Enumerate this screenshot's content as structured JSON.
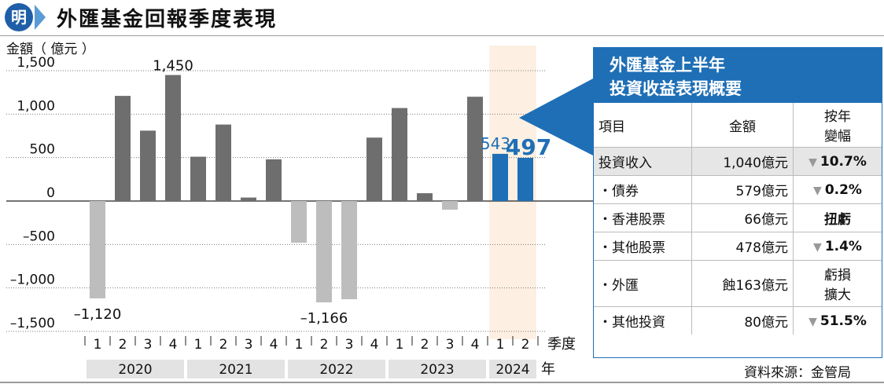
{
  "header": {
    "logo_text": "明",
    "title": "外匯基金回報季度表現"
  },
  "chart_data": {
    "type": "bar",
    "ylabel": "金額（ 億元 ）",
    "xlabel": "季度",
    "year_axis_label": "年",
    "ylim": [
      -1500,
      1500
    ],
    "yticks": [
      1500,
      1000,
      500,
      0,
      -500,
      -1000,
      -1500
    ],
    "ytick_labels": [
      "1,500",
      "1,000",
      "500",
      "0",
      "–500",
      "–1,000",
      "–1,500"
    ],
    "quarters": [
      "1",
      "2",
      "3",
      "4",
      "1",
      "2",
      "3",
      "4",
      "1",
      "2",
      "3",
      "4",
      "1",
      "2",
      "3",
      "4",
      "1",
      "2"
    ],
    "years": [
      "2020",
      "2020",
      "2020",
      "2020",
      "2021",
      "2021",
      "2021",
      "2021",
      "2022",
      "2022",
      "2022",
      "2022",
      "2023",
      "2023",
      "2023",
      "2023",
      "2024",
      "2024"
    ],
    "year_groups": [
      {
        "label": "2020",
        "count": 4
      },
      {
        "label": "2021",
        "count": 4
      },
      {
        "label": "2022",
        "count": 4
      },
      {
        "label": "2023",
        "count": 4
      },
      {
        "label": "2024",
        "count": 2
      }
    ],
    "values": [
      -1120,
      1210,
      810,
      1450,
      510,
      880,
      40,
      480,
      -480,
      -1166,
      -1130,
      730,
      1070,
      90,
      -100,
      1200,
      543,
      497
    ],
    "highlight_year": "2024",
    "colors": {
      "positive": "#6e6e6e",
      "negative": "#bdbdbd",
      "highlight": "#1f6fb6",
      "highlight_band": "#fdf0e2"
    },
    "data_labels": [
      {
        "index": 3,
        "text": "1,450"
      },
      {
        "index": 0,
        "text": "–1,120"
      },
      {
        "index": 9,
        "text": "–1,166"
      },
      {
        "index": 16,
        "text": "543"
      },
      {
        "index": 17,
        "text": "497"
      }
    ]
  },
  "panel": {
    "title_line1": "外匯基金上半年",
    "title_line2": "投資收益表現概要",
    "headers": {
      "item": "項目",
      "amount": "金額",
      "change_line1": "按年",
      "change_line2": "變幅"
    },
    "rows": [
      {
        "item": "投資收入",
        "amount": "1,040億元",
        "change": "10.7%",
        "down": true
      },
      {
        "item": "・債券",
        "amount": "579億元",
        "change": "0.2%",
        "down": true
      },
      {
        "item": "・香港股票",
        "amount": "66億元",
        "change": "扭虧",
        "down": false
      },
      {
        "item": "・其他股票",
        "amount": "478億元",
        "change": "1.4%",
        "down": true
      },
      {
        "item": "・外匯",
        "amount": "蝕163億元",
        "change_line1": "虧損",
        "change_line2": "擴大",
        "down": false
      },
      {
        "item": "・其他投資",
        "amount": "80億元",
        "change": "51.5%",
        "down": true
      }
    ]
  },
  "source": "資料來源：金管局"
}
